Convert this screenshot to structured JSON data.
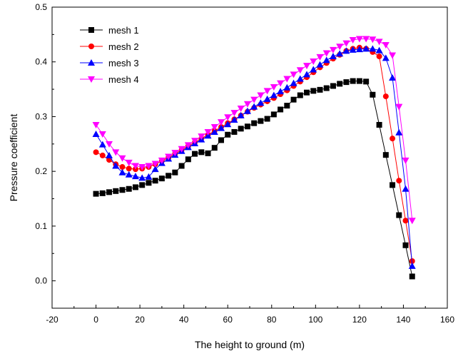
{
  "chart_data": {
    "type": "scatter",
    "title": "",
    "xlabel": "The height to ground (m)",
    "ylabel": "Pressure coefficient",
    "xlim": [
      -20,
      160
    ],
    "ylim": [
      -0.05,
      0.5
    ],
    "x_ticks": [
      "-20",
      "0",
      "20",
      "40",
      "60",
      "80",
      "100",
      "120",
      "140",
      "160"
    ],
    "y_ticks": [
      "0.0",
      "0.1",
      "0.2",
      "0.3",
      "0.4",
      "0.5"
    ],
    "grid": false,
    "legend_position": "top-left",
    "series": [
      {
        "name": "mesh 1",
        "color": "#000000",
        "marker": "square",
        "x": [
          0,
          3,
          6,
          9,
          12,
          15,
          18,
          21,
          24,
          27,
          30,
          33,
          36,
          39,
          42,
          45,
          48,
          51,
          54,
          57,
          60,
          63,
          66,
          69,
          72,
          75,
          78,
          81,
          84,
          87,
          90,
          93,
          96,
          99,
          102,
          105,
          108,
          111,
          114,
          117,
          120,
          123,
          126,
          129,
          132,
          135,
          138,
          141,
          144
        ],
        "y": [
          0.159,
          0.16,
          0.162,
          0.164,
          0.166,
          0.168,
          0.171,
          0.175,
          0.179,
          0.183,
          0.187,
          0.192,
          0.198,
          0.21,
          0.222,
          0.232,
          0.235,
          0.233,
          0.243,
          0.257,
          0.267,
          0.272,
          0.278,
          0.282,
          0.288,
          0.292,
          0.296,
          0.304,
          0.313,
          0.32,
          0.331,
          0.339,
          0.344,
          0.347,
          0.349,
          0.352,
          0.356,
          0.36,
          0.363,
          0.365,
          0.365,
          0.364,
          0.34,
          0.285,
          0.23,
          0.175,
          0.12,
          0.065,
          0.008
        ]
      },
      {
        "name": "mesh 2",
        "color": "#ff0000",
        "marker": "circle",
        "x": [
          0,
          3,
          6,
          9,
          12,
          15,
          18,
          21,
          24,
          27,
          30,
          33,
          36,
          39,
          42,
          45,
          48,
          51,
          54,
          57,
          60,
          63,
          66,
          69,
          72,
          75,
          78,
          81,
          84,
          87,
          90,
          93,
          96,
          99,
          102,
          105,
          108,
          111,
          114,
          117,
          120,
          123,
          126,
          129,
          132,
          135,
          138,
          141,
          144
        ],
        "y": [
          0.235,
          0.229,
          0.221,
          0.213,
          0.208,
          0.205,
          0.204,
          0.205,
          0.208,
          0.213,
          0.219,
          0.225,
          0.232,
          0.239,
          0.246,
          0.253,
          0.26,
          0.267,
          0.274,
          0.281,
          0.288,
          0.295,
          0.302,
          0.309,
          0.316,
          0.322,
          0.328,
          0.334,
          0.341,
          0.348,
          0.356,
          0.364,
          0.372,
          0.381,
          0.39,
          0.398,
          0.406,
          0.413,
          0.42,
          0.424,
          0.426,
          0.424,
          0.418,
          0.41,
          0.337,
          0.26,
          0.183,
          0.11,
          0.036
        ]
      },
      {
        "name": "mesh 3",
        "color": "#0000ff",
        "marker": "triangle-up",
        "x": [
          0,
          3,
          6,
          9,
          12,
          15,
          18,
          21,
          24,
          27,
          30,
          33,
          36,
          39,
          42,
          45,
          48,
          51,
          54,
          57,
          60,
          63,
          66,
          69,
          72,
          75,
          78,
          81,
          84,
          87,
          90,
          93,
          96,
          99,
          102,
          105,
          108,
          111,
          114,
          117,
          120,
          123,
          126,
          129,
          132,
          135,
          138,
          141,
          144
        ],
        "y": [
          0.268,
          0.249,
          0.229,
          0.21,
          0.198,
          0.194,
          0.191,
          0.188,
          0.19,
          0.204,
          0.215,
          0.223,
          0.23,
          0.237,
          0.244,
          0.251,
          0.258,
          0.265,
          0.272,
          0.279,
          0.286,
          0.294,
          0.302,
          0.31,
          0.318,
          0.325,
          0.332,
          0.339,
          0.346,
          0.353,
          0.361,
          0.369,
          0.377,
          0.386,
          0.395,
          0.403,
          0.41,
          0.415,
          0.42,
          0.422,
          0.423,
          0.424,
          0.424,
          0.421,
          0.407,
          0.371,
          0.271,
          0.168,
          0.027
        ]
      },
      {
        "name": "mesh 4",
        "color": "#ff00ff",
        "marker": "triangle-down",
        "x": [
          0,
          3,
          6,
          9,
          12,
          15,
          18,
          21,
          24,
          27,
          30,
          33,
          36,
          39,
          42,
          45,
          48,
          51,
          54,
          57,
          60,
          63,
          66,
          69,
          72,
          75,
          78,
          81,
          84,
          87,
          90,
          93,
          96,
          99,
          102,
          105,
          108,
          111,
          114,
          117,
          120,
          123,
          126,
          129,
          132,
          135,
          138,
          141,
          144
        ],
        "y": [
          0.285,
          0.268,
          0.25,
          0.235,
          0.224,
          0.216,
          0.21,
          0.208,
          0.21,
          0.214,
          0.22,
          0.227,
          0.234,
          0.241,
          0.248,
          0.256,
          0.264,
          0.272,
          0.281,
          0.29,
          0.299,
          0.307,
          0.315,
          0.323,
          0.331,
          0.339,
          0.347,
          0.354,
          0.361,
          0.369,
          0.377,
          0.385,
          0.393,
          0.401,
          0.409,
          0.416,
          0.422,
          0.428,
          0.434,
          0.44,
          0.442,
          0.442,
          0.441,
          0.437,
          0.431,
          0.412,
          0.318,
          0.22,
          0.11
        ]
      }
    ]
  }
}
